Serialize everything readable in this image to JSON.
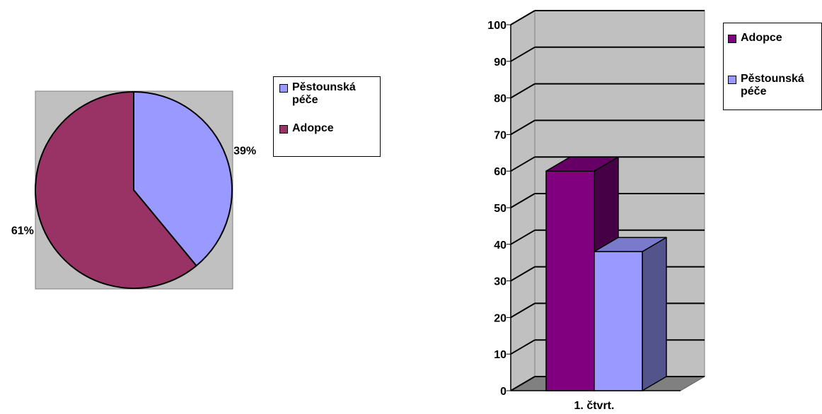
{
  "chart_data": [
    {
      "type": "pie",
      "slices": [
        {
          "label": "Pěstounská péče",
          "value": 39,
          "display": "39%",
          "color": "#9999ff"
        },
        {
          "label": "Adopce",
          "value": 61,
          "display": "61%",
          "color": "#993366"
        }
      ],
      "legend": {
        "placement": "right",
        "items": [
          {
            "label": "Pěstounská péče",
            "color": "#9999ff"
          },
          {
            "label": "Adopce",
            "color": "#993366"
          }
        ]
      },
      "plot_background": "#c0c0c0"
    },
    {
      "type": "bar",
      "style": "3d-clustered",
      "categories": [
        "1. čtvrt."
      ],
      "series": [
        {
          "name": "Adopce",
          "values": [
            60
          ],
          "color": "#800080"
        },
        {
          "name": "Pěstounská péče",
          "values": [
            38
          ],
          "color": "#9999ff"
        }
      ],
      "ylim": [
        0,
        100
      ],
      "yticks": [
        "0",
        "10",
        "20",
        "30",
        "40",
        "50",
        "60",
        "70",
        "80",
        "90",
        "100"
      ],
      "grid": true,
      "legend": {
        "placement": "right",
        "items": [
          {
            "label": "Adopce",
            "color": "#800080"
          },
          {
            "label": "Pěstounská péče",
            "color": "#9999ff"
          }
        ]
      },
      "wall_color": "#c0c0c0"
    }
  ]
}
